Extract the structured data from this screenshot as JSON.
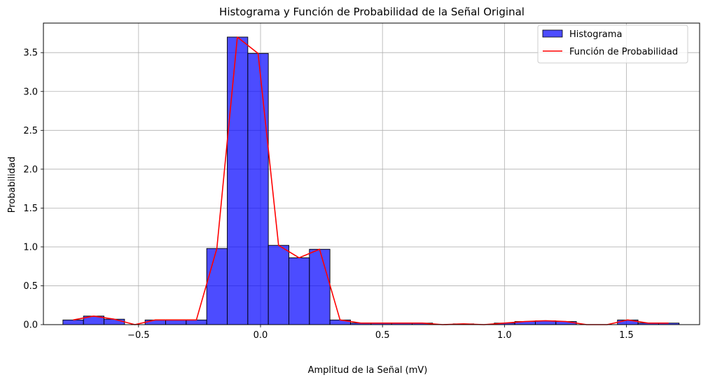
{
  "chart_data": {
    "type": "bar",
    "title": "Histograma y Función de Probabilidad de la Señal Original",
    "xlabel": "Amplitud de la Señal (mV)",
    "ylabel": "Probabilidad",
    "xlim": [
      -0.89,
      1.8
    ],
    "ylim": [
      0,
      3.88
    ],
    "grid": true,
    "legend_position": "top-right",
    "x_ticks": [
      -0.5,
      0.0,
      0.5,
      1.0,
      1.5
    ],
    "x_tick_labels": [
      "−0.5",
      "0.0",
      "0.5",
      "1.0",
      "1.5"
    ],
    "y_ticks": [
      0.0,
      0.5,
      1.0,
      1.5,
      2.0,
      2.5,
      3.0,
      3.5
    ],
    "y_tick_labels": [
      "0.0",
      "0.5",
      "1.0",
      "1.5",
      "2.0",
      "2.5",
      "3.0",
      "3.5"
    ],
    "series": [
      {
        "name": "Histograma",
        "kind": "histogram",
        "color": "#0000ff",
        "edge_color": "#000000",
        "bin_start": -0.81,
        "bin_width": 0.0842,
        "values": [
          0.06,
          0.11,
          0.07,
          0.0,
          0.06,
          0.06,
          0.06,
          0.98,
          3.7,
          3.49,
          1.02,
          0.86,
          0.97,
          0.06,
          0.02,
          0.02,
          0.02,
          0.02,
          0.0,
          0.01,
          0.0,
          0.02,
          0.04,
          0.05,
          0.04,
          0.0,
          0.0,
          0.06,
          0.02,
          0.02
        ]
      },
      {
        "name": "Función de Probabilidad",
        "kind": "line",
        "color": "#ff0000",
        "x": [
          -0.768,
          -0.684,
          -0.6,
          -0.515,
          -0.431,
          -0.347,
          -0.263,
          -0.179,
          -0.095,
          -0.01,
          0.074,
          0.158,
          0.242,
          0.326,
          0.411,
          0.495,
          0.579,
          0.663,
          0.747,
          0.832,
          0.916,
          1.0,
          1.084,
          1.168,
          1.252,
          1.337,
          1.421,
          1.505,
          1.589,
          1.673
        ],
        "y": [
          0.06,
          0.11,
          0.07,
          0.0,
          0.06,
          0.06,
          0.06,
          0.98,
          3.7,
          3.49,
          1.02,
          0.86,
          0.97,
          0.06,
          0.02,
          0.02,
          0.02,
          0.02,
          0.0,
          0.01,
          0.0,
          0.02,
          0.04,
          0.05,
          0.04,
          0.0,
          0.0,
          0.06,
          0.02,
          0.02
        ]
      }
    ]
  }
}
